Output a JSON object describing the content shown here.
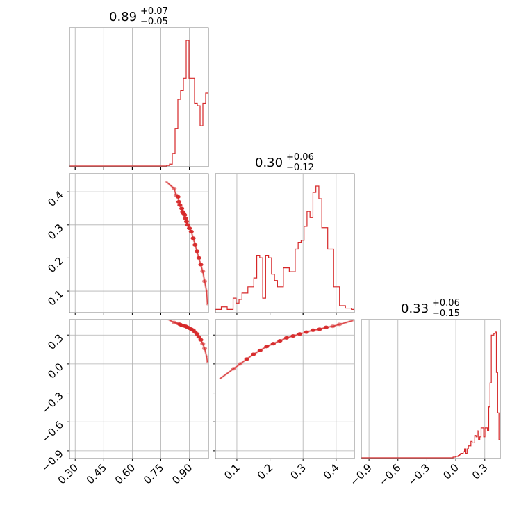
{
  "chart_data": {
    "type": "corner",
    "color": "#d62728",
    "grid": true,
    "parameters": [
      {
        "title_value": "0.89",
        "title_plus": "+0.07",
        "title_minus": "−0.05",
        "range": [
          0.27,
          1.0
        ],
        "ticks": [
          0.3,
          0.45,
          0.6,
          0.75,
          0.9
        ],
        "tick_labels": [
          "0.30",
          "0.45",
          "0.60",
          "0.75",
          "0.90"
        ],
        "hist": [
          0,
          0,
          0,
          0,
          0,
          0,
          0,
          0,
          0,
          0,
          0,
          0,
          0,
          0,
          0,
          0,
          0,
          0,
          0,
          0,
          0,
          0,
          0,
          0,
          0,
          0,
          0,
          0,
          0,
          0,
          0,
          0,
          0,
          0,
          0,
          0.5,
          1.5,
          10,
          30,
          53,
          60,
          70,
          100,
          70,
          70,
          50,
          48,
          32,
          50,
          58
        ]
      },
      {
        "title_value": "0.30",
        "title_plus": "+0.06",
        "title_minus": "−0.12",
        "range": [
          0.035,
          0.455
        ],
        "ticks": [
          0.1,
          0.2,
          0.3,
          0.4
        ],
        "tick_labels": [
          "0.1",
          "0.2",
          "0.3",
          "0.4"
        ],
        "y_ticks": [
          0.1,
          0.2,
          0.3,
          0.4
        ],
        "y_tick_labels": [
          "0.1",
          "0.2",
          "0.3",
          "0.4"
        ],
        "hist": [
          2,
          2,
          4,
          4,
          2,
          2,
          11,
          7,
          10,
          15,
          15,
          20,
          20,
          27,
          45,
          43,
          11,
          45,
          43,
          30,
          25,
          20,
          20,
          35,
          35,
          32,
          32,
          50,
          55,
          57,
          68,
          80,
          75,
          95,
          100,
          90,
          67,
          67,
          50,
          50,
          20,
          20,
          5,
          5,
          3,
          3,
          2
        ]
      },
      {
        "title_value": "0.33",
        "title_plus": "+0.06",
        "title_minus": "−0.15",
        "range": [
          -0.98,
          0.46
        ],
        "ticks": [
          -0.9,
          -0.6,
          -0.3,
          0.0,
          0.3
        ],
        "tick_labels": [
          "−0.9",
          "−0.6",
          "−0.3",
          "0.0",
          "0.3"
        ],
        "y_ticks": [
          -0.9,
          -0.6,
          -0.3,
          0.0,
          0.3
        ],
        "y_tick_labels": [
          "−0.9",
          "−0.6",
          "−0.3",
          "0.0",
          "0.3"
        ],
        "hist": [
          0,
          0,
          0,
          0,
          0,
          0,
          0,
          0,
          0,
          0,
          0,
          0,
          0,
          0,
          0,
          0,
          0,
          0,
          0,
          0,
          0,
          0,
          0,
          0,
          0,
          0,
          0,
          0,
          0,
          0,
          0,
          0,
          0,
          0,
          0,
          0,
          0,
          0,
          0,
          0,
          0,
          0,
          0,
          0,
          0,
          0,
          0,
          0,
          0,
          0,
          0,
          0,
          0,
          0,
          0,
          0,
          0,
          0,
          0,
          0,
          0,
          0,
          0,
          0,
          0,
          0,
          0,
          0,
          0,
          0,
          0,
          0,
          0.5,
          0.5,
          1,
          1,
          1.5,
          2,
          3,
          3,
          4,
          6,
          3,
          6,
          8,
          8,
          11,
          10,
          10,
          15,
          14,
          18,
          12,
          14,
          20,
          20,
          14,
          20,
          20,
          18,
          34,
          50,
          82,
          82,
          83,
          84,
          57,
          30,
          12
        ]
      }
    ],
    "scatter": [
      {
        "pair": "p1_vs_p0",
        "x": [
          0.78,
          0.8,
          0.82,
          0.83,
          0.84,
          0.845,
          0.85,
          0.86,
          0.865,
          0.87,
          0.875,
          0.88,
          0.885,
          0.89,
          0.9,
          0.91,
          0.92,
          0.93,
          0.94,
          0.95,
          0.96,
          0.97,
          0.98,
          0.99,
          0.995
        ],
        "y": [
          0.43,
          0.42,
          0.41,
          0.39,
          0.385,
          0.37,
          0.36,
          0.35,
          0.34,
          0.335,
          0.33,
          0.32,
          0.31,
          0.3,
          0.29,
          0.28,
          0.26,
          0.24,
          0.22,
          0.2,
          0.18,
          0.16,
          0.13,
          0.1,
          0.06
        ]
      },
      {
        "pair": "p2_vs_p0",
        "x": [
          0.78,
          0.8,
          0.82,
          0.84,
          0.85,
          0.86,
          0.87,
          0.88,
          0.89,
          0.9,
          0.91,
          0.92,
          0.93,
          0.94,
          0.95,
          0.96,
          0.97,
          0.98,
          0.99,
          0.995
        ],
        "y": [
          0.47,
          0.45,
          0.43,
          0.42,
          0.41,
          0.4,
          0.395,
          0.39,
          0.38,
          0.37,
          0.36,
          0.35,
          0.33,
          0.31,
          0.28,
          0.25,
          0.21,
          0.16,
          0.08,
          0.02
        ]
      },
      {
        "pair": "p2_vs_p1",
        "x": [
          0.05,
          0.07,
          0.09,
          0.11,
          0.13,
          0.15,
          0.17,
          0.19,
          0.21,
          0.23,
          0.25,
          0.27,
          0.29,
          0.31,
          0.33,
          0.35,
          0.37,
          0.39,
          0.41,
          0.43,
          0.45
        ],
        "y": [
          -0.15,
          -0.1,
          -0.05,
          0.0,
          0.05,
          0.1,
          0.14,
          0.18,
          0.21,
          0.24,
          0.27,
          0.29,
          0.31,
          0.33,
          0.35,
          0.36,
          0.38,
          0.39,
          0.41,
          0.43,
          0.45
        ]
      }
    ]
  }
}
